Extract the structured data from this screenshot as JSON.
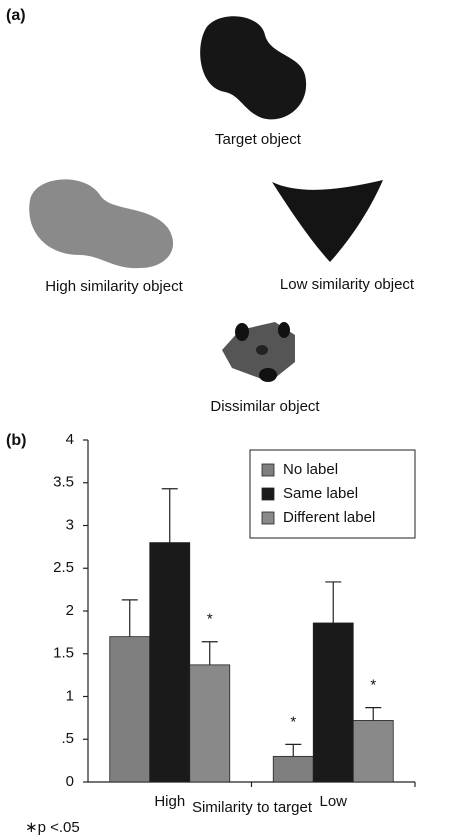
{
  "figure": {
    "panel_a_label": "(a)",
    "panel_b_label": "(b)",
    "objects": [
      "Target object",
      "High similarity object",
      "Low similarity object",
      "Dissimilar object"
    ]
  },
  "chart_data": {
    "type": "bar",
    "xlabel": "Similarity to target",
    "footnote": "∗p <.05",
    "categories": [
      "High",
      "Low"
    ],
    "series": [
      {
        "name": "No label",
        "color": "#7f7f7f",
        "values": [
          1.7,
          0.3
        ],
        "errors": [
          0.43,
          0.14
        ]
      },
      {
        "name": "Same label",
        "color": "#1a1a1a",
        "values": [
          2.8,
          1.86
        ],
        "errors": [
          0.63,
          0.48
        ]
      },
      {
        "name": "Different label",
        "color": "#898989",
        "values": [
          1.37,
          0.72
        ],
        "errors": [
          0.27,
          0.15
        ]
      }
    ],
    "annotations": [
      {
        "text": "*",
        "series": 2,
        "category": 0
      },
      {
        "text": "*",
        "series": 0,
        "category": 1
      },
      {
        "text": "*",
        "series": 2,
        "category": 1
      }
    ],
    "ylim": [
      0,
      4
    ],
    "yticks": [
      0,
      {
        "value": 0.5,
        "label": ".5"
      },
      1,
      1.5,
      2,
      2.5,
      3,
      3.5,
      4
    ],
    "grid": false,
    "legend": "upper right"
  }
}
